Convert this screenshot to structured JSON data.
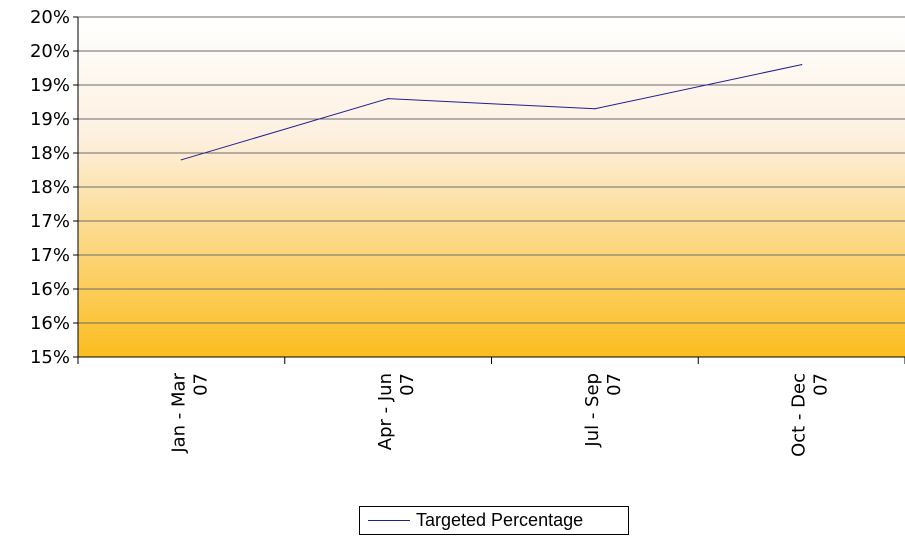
{
  "chart_data": {
    "type": "line",
    "title": "",
    "xlabel": "",
    "ylabel": "",
    "categories": [
      [
        "Jan - Mar",
        "07"
      ],
      [
        "Apr - Jun",
        "07"
      ],
      [
        "Jul - Sep",
        "07"
      ],
      [
        "Oct - Dec",
        "07"
      ]
    ],
    "y_tick_labels": [
      "15%",
      "16%",
      "16%",
      "17%",
      "17%",
      "18%",
      "18%",
      "19%",
      "19%",
      "20%",
      "20%"
    ],
    "ylim": [
      15.0,
      20.0
    ],
    "series": [
      {
        "name": "Targeted Percentage",
        "values": [
          17.9,
          18.8,
          18.65,
          19.3
        ],
        "color": "#1f1f8f"
      }
    ],
    "grid": true,
    "legend_position": "bottom",
    "plot_background_gradient": [
      "#ffffff",
      "#fbbd1e"
    ]
  }
}
